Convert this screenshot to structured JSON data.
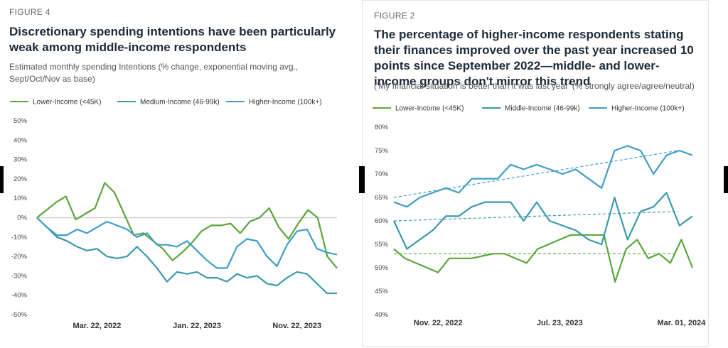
{
  "colors": {
    "green": "#5aa63c",
    "teal": "#3a9aaa",
    "blue": "#3e9dc8",
    "grid": "#e8e8e8",
    "zero": "#c9c9c9"
  },
  "chart_data": [
    {
      "type": "line",
      "figure_label": "FIGURE 4",
      "title": "Discretionary spending intentions have been particularly weak among middle-income respondents",
      "subtitle": "Estimated monthly spending Intentions (% change, exponential moving avg., Sept/Oct/Nov as base)",
      "ylim": [
        -50,
        50
      ],
      "yticks": [
        "50%",
        "40%",
        "30%",
        "20%",
        "10%",
        "0%",
        "-10%",
        "-20%",
        "-30%",
        "-40%",
        "-50%"
      ],
      "xtick_labels": [
        {
          "index": 6,
          "label": "Mar. 22, 2022"
        },
        {
          "index": 16,
          "label": "Jan. 22, 2023"
        },
        {
          "index": 26,
          "label": "Nov. 22, 2023"
        }
      ],
      "series": [
        {
          "name": "Lower-Income (<45K)",
          "color": "#5aa63c",
          "values": [
            0,
            4,
            8,
            11,
            -1,
            2,
            5,
            18,
            13,
            2,
            -9,
            -8,
            -12,
            -16,
            -22,
            -18,
            -13,
            -7,
            -4,
            -4,
            -3,
            -8,
            -2,
            0,
            5,
            -5,
            -11,
            -3,
            4,
            0,
            -20,
            -26
          ]
        },
        {
          "name": "Medium-Income (46-99k)",
          "color": "#3a9aaa",
          "values": [
            0,
            -5,
            -10,
            -12,
            -15,
            -17,
            -16,
            -20,
            -21,
            -20,
            -15,
            -20,
            -26,
            -33,
            -28,
            -29,
            -28,
            -31,
            -31,
            -33,
            -29,
            -31,
            -30,
            -34,
            -35,
            -31,
            -28,
            -29,
            -34,
            -39,
            -39
          ]
        },
        {
          "name": "Higher-Income (100k+)",
          "color": "#3e9dc8",
          "values": [
            0,
            -5,
            -9,
            -9,
            -6,
            -8,
            -5,
            -2,
            -4,
            -6,
            -10,
            -8,
            -14,
            -14,
            -15,
            -12,
            -17,
            -22,
            -26,
            -26,
            -15,
            -11,
            -12,
            -20,
            -25,
            -14,
            -7,
            -6,
            -16,
            -18,
            -19
          ]
        }
      ]
    },
    {
      "type": "line",
      "figure_label": "FIGURE 2",
      "title": "The percentage of higher-income respondents stating their finances improved over the past year increased 10 points since September 2022—middle- and lower-income groups don't mirror this trend",
      "subtitle": "('My financial situation is better than it was last year' (% strongly agree/agree/neutral)",
      "ylim": [
        40,
        80
      ],
      "yticks": [
        "80%",
        "75%",
        "70%",
        "65%",
        "60%",
        "55%",
        "50%",
        "45%",
        "40%"
      ],
      "xtick_labels": [
        {
          "index": 4,
          "label": "Nov. 22, 2022"
        },
        {
          "index": 15,
          "label": "Jul. 23, 2023"
        },
        {
          "index": 26,
          "label": "Mar. 01, 2024"
        }
      ],
      "series": [
        {
          "name": "Lower-Income (<45K)",
          "color": "#5aa63c",
          "values": [
            54,
            52,
            51,
            50,
            49,
            52,
            52,
            52,
            52.5,
            53,
            53,
            52,
            51,
            54,
            55,
            56,
            57,
            57,
            57,
            57,
            47,
            54,
            56,
            52,
            53,
            51,
            56,
            50
          ],
          "trend": [
            53,
            53
          ]
        },
        {
          "name": "Middle-Income (46-99k)",
          "color": "#3a9aaa",
          "values": [
            60,
            54,
            56,
            58,
            61,
            61,
            63,
            64,
            64,
            64,
            60,
            64,
            60,
            59,
            58,
            56,
            55,
            65,
            56,
            62,
            63,
            66,
            59,
            61
          ],
          "trend": [
            60,
            62
          ]
        },
        {
          "name": "Higher-Income (100k+)",
          "color": "#3e9dc8",
          "values": [
            64,
            63,
            65,
            66,
            67,
            66,
            69,
            69,
            69,
            72,
            71,
            72,
            71,
            70,
            71,
            69,
            67,
            75,
            76,
            75,
            70,
            74,
            75,
            74
          ],
          "trend": [
            65,
            75
          ]
        }
      ]
    }
  ]
}
